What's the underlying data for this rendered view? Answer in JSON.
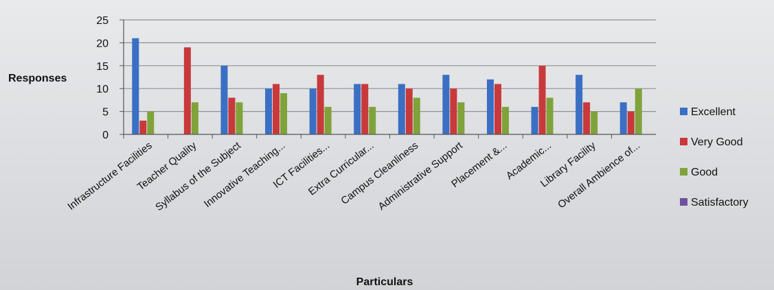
{
  "chart_data": {
    "type": "bar",
    "title": "",
    "xlabel": "Particulars",
    "ylabel": "Responses",
    "ylim": [
      0,
      25
    ],
    "yticks": [
      0,
      5,
      10,
      15,
      20,
      25
    ],
    "grid": true,
    "legend_position": "right",
    "categories": [
      "Infrastructure Facilities",
      "Teacher Quality",
      "Syllabus of the Subject",
      "Innovative Teaching...",
      "ICT Facilities...",
      "Extra Curricular...",
      "Campus Cleanliness",
      "Administrative Support",
      "Placement &...",
      "Academic...",
      "Library Facility",
      "Overall Ambience of..."
    ],
    "series": [
      {
        "name": "Excellent",
        "color": "#3a6fc4",
        "values": [
          21,
          0,
          15,
          10,
          10,
          11,
          11,
          13,
          12,
          6,
          13,
          7
        ]
      },
      {
        "name": "Very Good",
        "color": "#c8393b",
        "values": [
          3,
          19,
          8,
          11,
          13,
          11,
          10,
          10,
          11,
          15,
          7,
          5
        ]
      },
      {
        "name": "Good",
        "color": "#7fa33a",
        "values": [
          5,
          7,
          7,
          9,
          6,
          6,
          8,
          7,
          6,
          8,
          5,
          10
        ]
      },
      {
        "name": "Satisfactory",
        "color": "#6e4fa0",
        "values": [
          0,
          0,
          0,
          0,
          0,
          0,
          0,
          0,
          0,
          0,
          0,
          0
        ]
      }
    ]
  }
}
